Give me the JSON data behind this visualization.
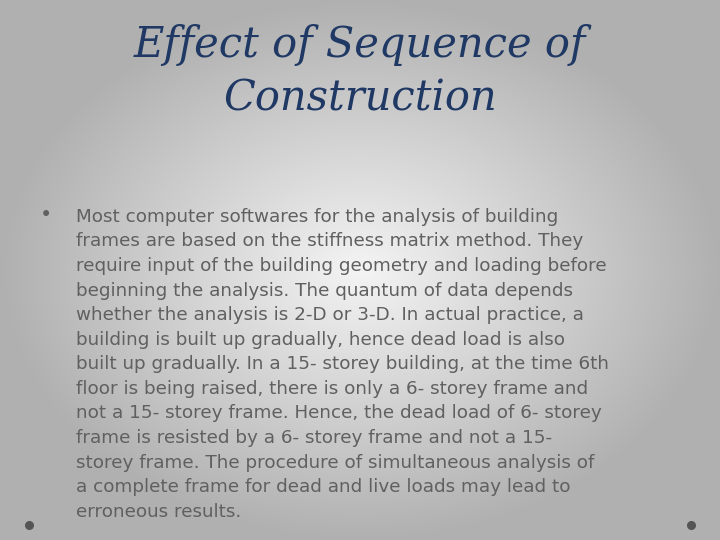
{
  "title_line1": "Effect of Sequence of",
  "title_line2": "Construction",
  "title_color": "#1F3864",
  "title_fontsize": 30,
  "body_lines": [
    "Most computer softwares for the analysis of building",
    "frames are based on the stiffness matrix method. They",
    "require input of the building geometry and loading before",
    "beginning the analysis. The quantum of data depends",
    "whether the analysis is 2-D or 3-D. In actual practice, a",
    "building is built up gradually, hence dead load is also",
    "built up gradually. In a 15- storey building, at the time 6th",
    "floor is being raised, there is only a 6- storey frame and",
    "not a 15- storey frame. Hence, the dead load of 6- storey",
    "frame is resisted by a 6- storey frame and not a 15-",
    "storey frame. The procedure of simultaneous analysis of",
    "a complete frame for dead and live loads may lead to",
    "erroneous results."
  ],
  "body_color": "#606060",
  "body_fontsize": 13.2,
  "bullet_color": "#606060",
  "dot_color": "#555555",
  "bg_center": "#f4f4f4",
  "bg_edge": "#b4b4b4",
  "figwidth": 7.2,
  "figheight": 5.4,
  "dpi": 100
}
